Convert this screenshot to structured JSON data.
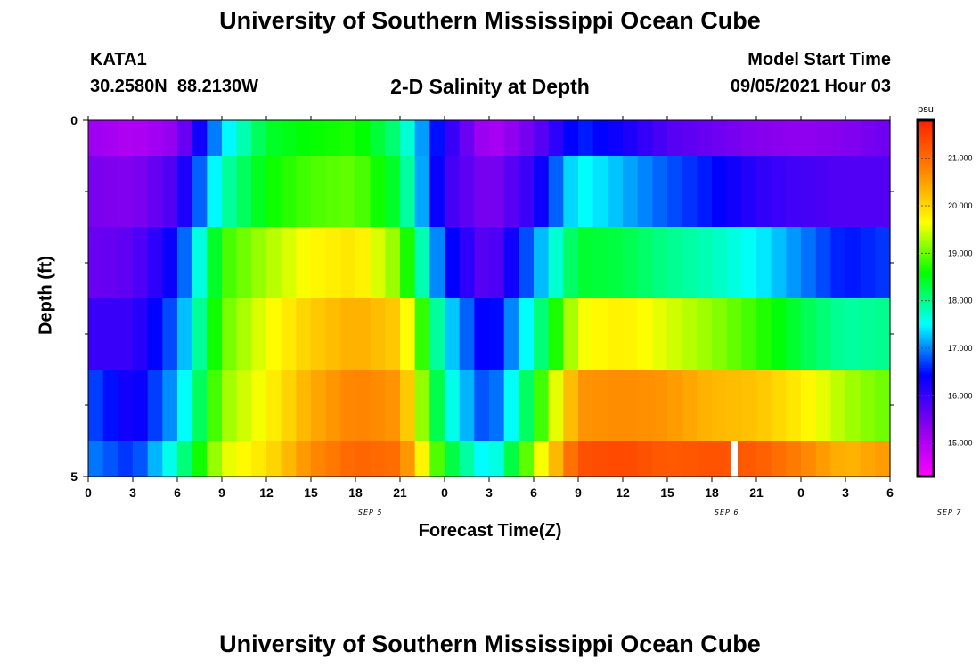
{
  "page": {
    "title_top": "University of Southern Mississippi Ocean Cube",
    "title_bottom": "University of Southern Mississippi Ocean Cube",
    "station_id": "KATA1",
    "station_coords": "30.2580N  88.2130W",
    "plot_subtitle": "2-D Salinity at Depth",
    "model_start_label": "Model Start Time",
    "model_start_value": "09/05/2021 Hour 03"
  },
  "colors": {
    "colormap": [
      "#ff00ff",
      "#8800ee",
      "#0000ff",
      "#00ffff",
      "#00ff00",
      "#ffff00",
      "#ff8800",
      "#ff2200"
    ],
    "missing": "#ffffff"
  },
  "chart_data": {
    "type": "heatmap",
    "xlabel": "Forecast Time(Z)",
    "ylabel": "Depth (ft)",
    "x_tick_labels": [
      "0",
      "3",
      "6",
      "9",
      "12",
      "15",
      "18",
      "21",
      "0",
      "3",
      "6",
      "9",
      "12",
      "15",
      "18",
      "21",
      "0",
      "3",
      "6"
    ],
    "x_date_labels": [
      {
        "label": "SEP 5",
        "hour": 19
      },
      {
        "label": "SEP 6",
        "hour": 43
      },
      {
        "label": "SEP 7",
        "hour": 58
      }
    ],
    "x_range_hours": [
      0,
      54
    ],
    "y_range": [
      0,
      5
    ],
    "y_tick_labels": [
      "0",
      "5"
    ],
    "y_minor_ticks": [
      1,
      2,
      3,
      4
    ],
    "time_hours": [
      0,
      3,
      6,
      9,
      12,
      15,
      18,
      21,
      24,
      27,
      30,
      33,
      36,
      39,
      42,
      45,
      48,
      51,
      54
    ],
    "depth_layers": [
      "0-0.5",
      "0.5-1.5",
      "1.5-2.5",
      "2.5-3.5",
      "3.5-4.5",
      "4.5-5"
    ],
    "salinity_psu": [
      [
        15.2,
        15.0,
        15.3,
        17.3,
        18.4,
        18.6,
        18.7,
        18.0,
        16.2,
        15.0,
        15.6,
        16.6,
        16.3,
        15.8,
        15.6,
        15.4,
        15.3,
        15.4,
        15.6
      ],
      [
        15.5,
        15.4,
        15.9,
        17.8,
        18.6,
        18.9,
        19.0,
        18.3,
        16.0,
        15.4,
        16.1,
        17.6,
        17.2,
        16.8,
        16.5,
        16.1,
        15.9,
        15.8,
        15.8
      ],
      [
        15.6,
        15.7,
        16.5,
        18.8,
        19.3,
        19.7,
        19.9,
        19.1,
        16.6,
        15.6,
        17.0,
        18.4,
        18.3,
        18.0,
        17.8,
        17.5,
        17.0,
        16.5,
        16.7
      ],
      [
        16.0,
        16.0,
        16.9,
        19.0,
        19.6,
        20.1,
        20.4,
        20.1,
        17.5,
        16.2,
        17.8,
        19.6,
        19.8,
        19.5,
        19.2,
        18.8,
        18.3,
        17.9,
        18.0
      ],
      [
        16.8,
        16.2,
        17.2,
        19.2,
        19.7,
        20.4,
        20.8,
        20.6,
        17.8,
        16.6,
        18.5,
        20.6,
        20.7,
        20.6,
        20.3,
        20.2,
        19.8,
        19.3,
        19.0
      ],
      [
        17.0,
        16.6,
        17.8,
        19.5,
        19.9,
        20.7,
        21.1,
        21.0,
        18.5,
        17.3,
        19.3,
        21.3,
        21.4,
        21.2,
        21.3,
        21.2,
        20.8,
        20.3,
        20.6
      ]
    ],
    "missing_cell": {
      "time_hour": 43.5,
      "layer": "4.5-5"
    },
    "colorbar": {
      "units": "psu",
      "range": [
        14.3,
        21.8
      ],
      "tick_labels": [
        "15.000",
        "16.000",
        "17.000",
        "18.000",
        "19.000",
        "20.000",
        "21.000"
      ],
      "tick_values": [
        15,
        16,
        17,
        18,
        19,
        20,
        21
      ]
    }
  }
}
